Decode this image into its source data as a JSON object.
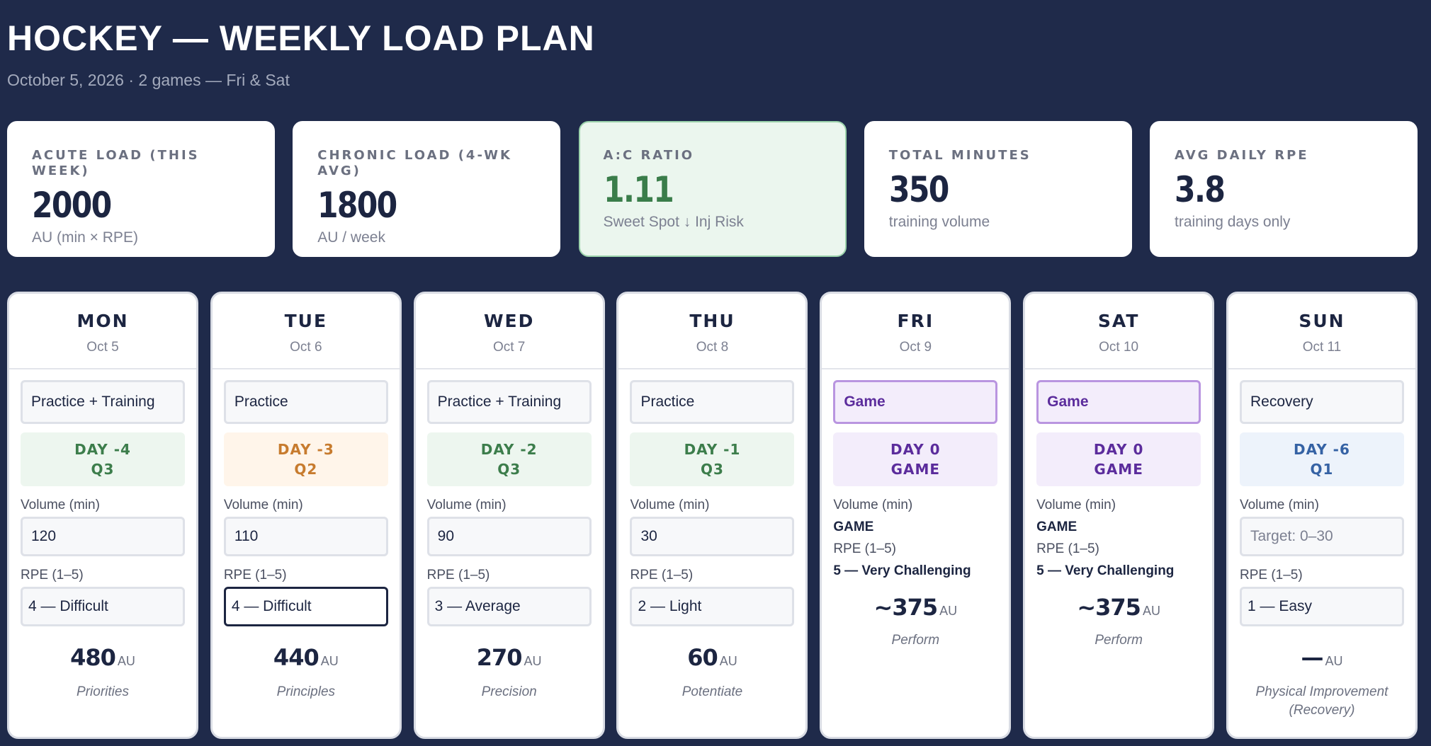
{
  "header": {
    "title": "HOCKEY — WEEKLY LOAD PLAN",
    "subtitle": "October 5, 2026 · 2 games — Fri & Sat"
  },
  "summary": [
    {
      "label": "ACUTE LOAD (THIS WEEK)",
      "value": "2000",
      "note": "AU (min × RPE)"
    },
    {
      "label": "CHRONIC LOAD (4-WK AVG)",
      "value": "1800",
      "note": "AU / week"
    },
    {
      "label": "A:C RATIO",
      "value": "1.11",
      "note": "Sweet Spot ↓ Inj Risk"
    },
    {
      "label": "TOTAL MINUTES",
      "value": "350",
      "note": "training volume"
    },
    {
      "label": "AVG DAILY RPE",
      "value": "3.8",
      "note": "training days only"
    }
  ],
  "labels": {
    "volume": "Volume (min)",
    "rpe": "RPE (1–5)",
    "au": "AU"
  },
  "days": [
    {
      "name": "MON",
      "date": "Oct 5",
      "session": "Practice + Training",
      "phase1": "DAY -4",
      "phase2": "Q3",
      "volume": "120",
      "rpe": "4 — Difficult",
      "load": "480",
      "tag": "Priorities"
    },
    {
      "name": "TUE",
      "date": "Oct 6",
      "session": "Practice",
      "phase1": "DAY -3",
      "phase2": "Q2",
      "volume": "110",
      "rpe": "4 — Difficult",
      "load": "440",
      "tag": "Principles"
    },
    {
      "name": "WED",
      "date": "Oct 7",
      "session": "Practice + Training",
      "phase1": "DAY -2",
      "phase2": "Q3",
      "volume": "90",
      "rpe": "3 — Average",
      "load": "270",
      "tag": "Precision"
    },
    {
      "name": "THU",
      "date": "Oct 8",
      "session": "Practice",
      "phase1": "DAY -1",
      "phase2": "Q3",
      "volume": "30",
      "rpe": "2 — Light",
      "load": "60",
      "tag": "Potentiate"
    },
    {
      "name": "FRI",
      "date": "Oct 9",
      "session": "Game",
      "phase1": "DAY 0",
      "phase2": "GAME",
      "volume": "GAME",
      "rpe": "5 — Very Challenging",
      "load": "~375",
      "tag": "Perform"
    },
    {
      "name": "SAT",
      "date": "Oct 10",
      "session": "Game",
      "phase1": "DAY 0",
      "phase2": "GAME",
      "volume": "GAME",
      "rpe": "5 — Very Challenging",
      "load": "~375",
      "tag": "Perform"
    },
    {
      "name": "SUN",
      "date": "Oct 11",
      "session": "Recovery",
      "phase1": "DAY -6",
      "phase2": "Q1",
      "volume_placeholder": "Target: 0–30",
      "rpe": "1 — Easy",
      "load": "—",
      "tag": "Physical Improvement (Recovery)"
    }
  ],
  "colors": {
    "background": "#1f2a4a",
    "green": "#3c7d4b",
    "orange": "#c77b2e",
    "purple": "#5b2c9c",
    "blue": "#3562a4"
  }
}
